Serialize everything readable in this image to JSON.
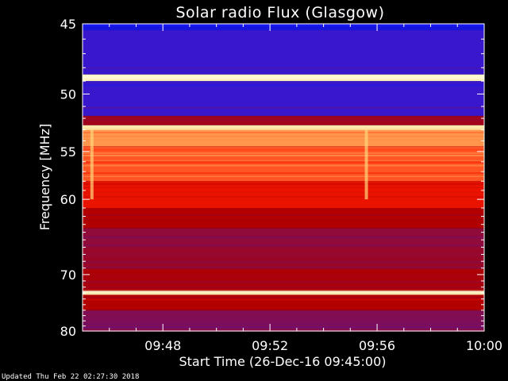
{
  "chart_data": {
    "type": "heatmap",
    "title": "Solar radio Flux (Glasgow)",
    "xlabel": "Start Time (26-Dec-16 09:45:00)",
    "ylabel": "Frequency [MHz]",
    "xlim": [
      0,
      15
    ],
    "ylim": [
      45,
      80
    ],
    "y_scale": "reciprocal",
    "y_inverted": true,
    "x_tick_labels": [
      "09:48",
      "09:52",
      "09:56",
      "10:00"
    ],
    "x_ticks": [
      3,
      7,
      11,
      15
    ],
    "y_ticks": [
      45,
      50,
      55,
      60,
      70,
      80
    ],
    "y_tick_labels": [
      "45",
      "50",
      "55",
      "60",
      "70",
      "80"
    ],
    "colormap": [
      "#0a0a6e",
      "#1a1aff",
      "#7a1060",
      "#b00000",
      "#ff1a00",
      "#ffd070",
      "#ffffe0"
    ],
    "frequency_bands": [
      {
        "from": 45.0,
        "to": 45.4,
        "level": 0.15
      },
      {
        "from": 45.4,
        "to": 48.5,
        "level": 0.22
      },
      {
        "from": 48.5,
        "to": 49.0,
        "level": 0.95
      },
      {
        "from": 49.0,
        "to": 51.8,
        "level": 0.22
      },
      {
        "from": 51.8,
        "to": 52.6,
        "level": 0.45
      },
      {
        "from": 52.6,
        "to": 53.0,
        "level": 0.92
      },
      {
        "from": 53.0,
        "to": 54.5,
        "level": 0.78
      },
      {
        "from": 54.5,
        "to": 58.0,
        "level": 0.72
      },
      {
        "from": 58.0,
        "to": 61.0,
        "level": 0.62
      },
      {
        "from": 61.0,
        "to": 63.5,
        "level": 0.5
      },
      {
        "from": 63.5,
        "to": 66.0,
        "level": 0.4
      },
      {
        "from": 66.0,
        "to": 69.0,
        "level": 0.42
      },
      {
        "from": 69.0,
        "to": 72.5,
        "level": 0.48
      },
      {
        "from": 72.5,
        "to": 73.2,
        "level": 0.95
      },
      {
        "from": 73.2,
        "to": 76.0,
        "level": 0.5
      },
      {
        "from": 76.0,
        "to": 80.0,
        "level": 0.35
      }
    ],
    "bright_lines_mhz": [
      48.7,
      72.8
    ],
    "burst_times": [
      0.35,
      10.6
    ],
    "updated_label": "Updated Thu Feb 22 02:27:30 2018"
  }
}
